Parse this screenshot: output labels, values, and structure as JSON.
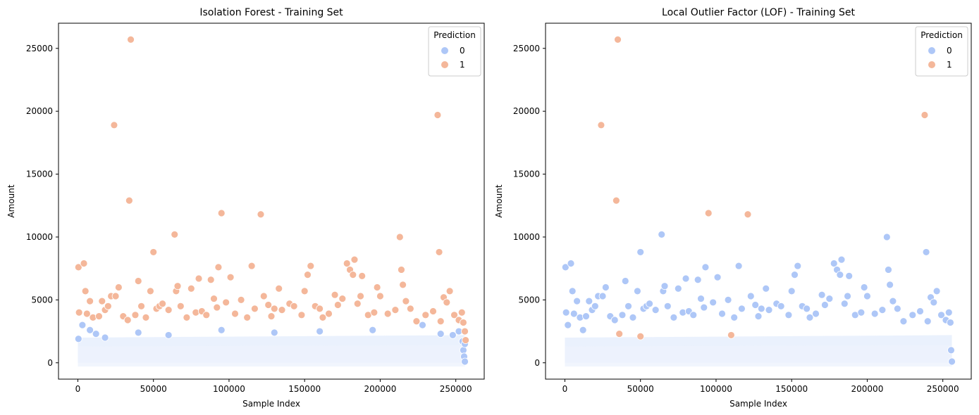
{
  "chart_data": [
    {
      "type": "scatter",
      "title": "Isolation Forest - Training Set",
      "xlabel": "Sample Index",
      "ylabel": "Amount",
      "xlim": [
        -12800,
        268800
      ],
      "ylim": [
        -1300,
        27000
      ],
      "xticks": [
        0,
        50000,
        100000,
        150000,
        200000,
        250000
      ],
      "xtick_labels": [
        "0",
        "50000",
        "100000",
        "150000",
        "200000",
        "250000"
      ],
      "yticks": [
        0,
        5000,
        10000,
        15000,
        20000,
        25000
      ],
      "ytick_labels": [
        "0",
        "5000",
        "10000",
        "15000",
        "20000",
        "25000"
      ],
      "grid": false,
      "legend": {
        "title": "Prediction",
        "placement": "top-right",
        "entries": [
          "0",
          "1"
        ]
      },
      "colors": {
        "0": "#aec7f7",
        "1": "#f4b79a"
      },
      "series": [
        {
          "name": "0",
          "points": [
            [
              400,
              1900
            ],
            [
              3000,
              3000
            ],
            [
              8000,
              2600
            ],
            [
              12000,
              2300
            ],
            [
              18000,
              2000
            ],
            [
              40000,
              2400
            ],
            [
              60000,
              2200
            ],
            [
              95000,
              2600
            ],
            [
              130000,
              2400
            ],
            [
              160000,
              2500
            ],
            [
              195000,
              2600
            ],
            [
              228000,
              3000
            ],
            [
              240000,
              2300
            ],
            [
              248000,
              2200
            ],
            [
              252000,
              2500
            ],
            [
              254500,
              1700
            ],
            [
              255000,
              1000
            ],
            [
              255500,
              500
            ],
            [
              256000,
              100
            ],
            [
              256000,
              1500
            ]
          ]
        },
        {
          "name": "1",
          "points": [
            [
              400,
              7600
            ],
            [
              800,
              4000
            ],
            [
              4000,
              7900
            ],
            [
              5000,
              5700
            ],
            [
              6000,
              3900
            ],
            [
              8000,
              4900
            ],
            [
              10000,
              3600
            ],
            [
              14000,
              3700
            ],
            [
              16000,
              4900
            ],
            [
              18000,
              4200
            ],
            [
              20000,
              4500
            ],
            [
              22000,
              5300
            ],
            [
              24000,
              18900
            ],
            [
              25000,
              5300
            ],
            [
              27000,
              6000
            ],
            [
              30000,
              3700
            ],
            [
              33000,
              3400
            ],
            [
              34000,
              12900
            ],
            [
              35000,
              25700
            ],
            [
              38000,
              3800
            ],
            [
              40000,
              6500
            ],
            [
              42000,
              4500
            ],
            [
              45000,
              3600
            ],
            [
              48000,
              5700
            ],
            [
              50000,
              8800
            ],
            [
              52000,
              4300
            ],
            [
              54000,
              4500
            ],
            [
              56000,
              4700
            ],
            [
              60000,
              4200
            ],
            [
              64000,
              10200
            ],
            [
              65000,
              5700
            ],
            [
              66000,
              6100
            ],
            [
              68000,
              4500
            ],
            [
              72000,
              3600
            ],
            [
              75000,
              5900
            ],
            [
              78000,
              4000
            ],
            [
              80000,
              6700
            ],
            [
              82000,
              4100
            ],
            [
              85000,
              3800
            ],
            [
              88000,
              6600
            ],
            [
              90000,
              5100
            ],
            [
              92000,
              4400
            ],
            [
              93000,
              7600
            ],
            [
              95000,
              11900
            ],
            [
              98000,
              4800
            ],
            [
              101000,
              6800
            ],
            [
              104000,
              3900
            ],
            [
              108000,
              5000
            ],
            [
              112000,
              3600
            ],
            [
              115000,
              7700
            ],
            [
              117000,
              4300
            ],
            [
              121000,
              11800
            ],
            [
              123000,
              5300
            ],
            [
              126000,
              4600
            ],
            [
              128000,
              3700
            ],
            [
              130000,
              4300
            ],
            [
              133000,
              5900
            ],
            [
              135000,
              4200
            ],
            [
              140000,
              4700
            ],
            [
              143000,
              4500
            ],
            [
              148000,
              3800
            ],
            [
              150000,
              5700
            ],
            [
              152000,
              7000
            ],
            [
              154000,
              7700
            ],
            [
              157000,
              4500
            ],
            [
              160000,
              4300
            ],
            [
              162000,
              3600
            ],
            [
              166000,
              3900
            ],
            [
              170000,
              5400
            ],
            [
              172000,
              4600
            ],
            [
              175000,
              5100
            ],
            [
              178000,
              7900
            ],
            [
              180000,
              7400
            ],
            [
              182000,
              7000
            ],
            [
              183000,
              8200
            ],
            [
              185000,
              4700
            ],
            [
              187000,
              5300
            ],
            [
              188000,
              6900
            ],
            [
              192000,
              3800
            ],
            [
              196000,
              4000
            ],
            [
              198000,
              6000
            ],
            [
              200000,
              5300
            ],
            [
              205000,
              3900
            ],
            [
              210000,
              4200
            ],
            [
              213000,
              10000
            ],
            [
              214000,
              7400
            ],
            [
              215000,
              6200
            ],
            [
              217000,
              4900
            ],
            [
              220000,
              4300
            ],
            [
              224000,
              3300
            ],
            [
              230000,
              3800
            ],
            [
              235000,
              4100
            ],
            [
              238000,
              19700
            ],
            [
              239000,
              8800
            ],
            [
              240000,
              3300
            ],
            [
              242000,
              5200
            ],
            [
              244000,
              4800
            ],
            [
              246000,
              5700
            ],
            [
              249000,
              3800
            ],
            [
              252000,
              3400
            ],
            [
              254000,
              4000
            ],
            [
              255000,
              3200
            ],
            [
              256000,
              2500
            ],
            [
              256500,
              1800
            ]
          ]
        }
      ]
    },
    {
      "type": "scatter",
      "title": "Local Outlier Factor (LOF) - Training Set",
      "xlabel": "Sample Index",
      "ylabel": "Amount",
      "xlim": [
        -12800,
        268800
      ],
      "ylim": [
        -1300,
        27000
      ],
      "xticks": [
        0,
        50000,
        100000,
        150000,
        200000,
        250000
      ],
      "xtick_labels": [
        "0",
        "50000",
        "100000",
        "150000",
        "200000",
        "250000"
      ],
      "yticks": [
        0,
        5000,
        10000,
        15000,
        20000,
        25000
      ],
      "ytick_labels": [
        "0",
        "5000",
        "10000",
        "15000",
        "20000",
        "25000"
      ],
      "grid": false,
      "legend": {
        "title": "Prediction",
        "placement": "top-right",
        "entries": [
          "0",
          "1"
        ]
      },
      "colors": {
        "0": "#aec7f7",
        "1": "#f4b79a"
      },
      "series": [
        {
          "name": "0",
          "points": [
            [
              400,
              7600
            ],
            [
              800,
              4000
            ],
            [
              2000,
              3000
            ],
            [
              4000,
              7900
            ],
            [
              5000,
              5700
            ],
            [
              6000,
              3900
            ],
            [
              8000,
              4900
            ],
            [
              10000,
              3600
            ],
            [
              12000,
              2600
            ],
            [
              14000,
              3700
            ],
            [
              16000,
              4900
            ],
            [
              18000,
              4200
            ],
            [
              20000,
              4500
            ],
            [
              22000,
              5300
            ],
            [
              25000,
              5300
            ],
            [
              27000,
              6000
            ],
            [
              30000,
              3700
            ],
            [
              33000,
              3400
            ],
            [
              38000,
              3800
            ],
            [
              40000,
              6500
            ],
            [
              42000,
              4500
            ],
            [
              45000,
              3600
            ],
            [
              48000,
              5700
            ],
            [
              50000,
              8800
            ],
            [
              52000,
              4300
            ],
            [
              54000,
              4500
            ],
            [
              56000,
              4700
            ],
            [
              60000,
              4200
            ],
            [
              64000,
              10200
            ],
            [
              65000,
              5700
            ],
            [
              66000,
              6100
            ],
            [
              68000,
              4500
            ],
            [
              72000,
              3600
            ],
            [
              75000,
              5900
            ],
            [
              78000,
              4000
            ],
            [
              80000,
              6700
            ],
            [
              82000,
              4100
            ],
            [
              85000,
              3800
            ],
            [
              88000,
              6600
            ],
            [
              90000,
              5100
            ],
            [
              92000,
              4400
            ],
            [
              93000,
              7600
            ],
            [
              98000,
              4800
            ],
            [
              101000,
              6800
            ],
            [
              104000,
              3900
            ],
            [
              108000,
              5000
            ],
            [
              112000,
              3600
            ],
            [
              115000,
              7700
            ],
            [
              117000,
              4300
            ],
            [
              123000,
              5300
            ],
            [
              126000,
              4600
            ],
            [
              128000,
              3700
            ],
            [
              130000,
              4300
            ],
            [
              133000,
              5900
            ],
            [
              135000,
              4200
            ],
            [
              140000,
              4700
            ],
            [
              143000,
              4500
            ],
            [
              148000,
              3800
            ],
            [
              150000,
              5700
            ],
            [
              152000,
              7000
            ],
            [
              154000,
              7700
            ],
            [
              157000,
              4500
            ],
            [
              160000,
              4300
            ],
            [
              162000,
              3600
            ],
            [
              166000,
              3900
            ],
            [
              170000,
              5400
            ],
            [
              172000,
              4600
            ],
            [
              175000,
              5100
            ],
            [
              178000,
              7900
            ],
            [
              180000,
              7400
            ],
            [
              182000,
              7000
            ],
            [
              183000,
              8200
            ],
            [
              185000,
              4700
            ],
            [
              187000,
              5300
            ],
            [
              188000,
              6900
            ],
            [
              192000,
              3800
            ],
            [
              196000,
              4000
            ],
            [
              198000,
              6000
            ],
            [
              200000,
              5300
            ],
            [
              205000,
              3900
            ],
            [
              210000,
              4200
            ],
            [
              213000,
              10000
            ],
            [
              214000,
              7400
            ],
            [
              215000,
              6200
            ],
            [
              217000,
              4900
            ],
            [
              220000,
              4300
            ],
            [
              224000,
              3300
            ],
            [
              230000,
              3800
            ],
            [
              235000,
              4100
            ],
            [
              239000,
              8800
            ],
            [
              240000,
              3300
            ],
            [
              242000,
              5200
            ],
            [
              244000,
              4800
            ],
            [
              246000,
              5700
            ],
            [
              249000,
              3800
            ],
            [
              252000,
              3400
            ],
            [
              254000,
              4000
            ],
            [
              255000,
              3200
            ],
            [
              255500,
              1000
            ],
            [
              256000,
              100
            ]
          ]
        },
        {
          "name": "1",
          "points": [
            [
              24000,
              18900
            ],
            [
              34000,
              12900
            ],
            [
              35000,
              25700
            ],
            [
              95000,
              11900
            ],
            [
              121000,
              11800
            ],
            [
              238000,
              19700
            ],
            [
              110000,
              2200
            ],
            [
              36000,
              2300
            ],
            [
              50000,
              2100
            ]
          ]
        }
      ]
    }
  ]
}
